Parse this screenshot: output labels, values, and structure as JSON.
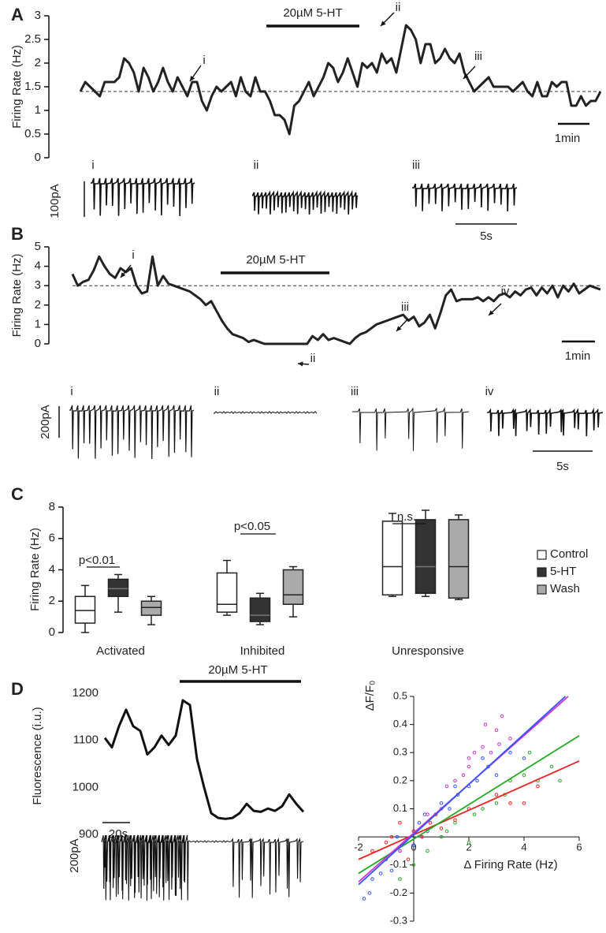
{
  "chart_data": [
    {
      "type": "line",
      "panel": "A",
      "ylabel": "Firing Rate (Hz)",
      "drug": "20µM 5-HT",
      "arrow_labels": [
        "i",
        "ii",
        "iii"
      ],
      "scale_time": "1min",
      "trace_labels": [
        "i",
        "ii",
        "iii"
      ],
      "trace_scale_current": "100pA",
      "trace_scale_time": "5s",
      "reference_line": 1.4,
      "color": "#222222",
      "ylim": [
        0,
        3
      ],
      "yticks": [
        0,
        0.5,
        1,
        1.5,
        2,
        2.5,
        3
      ],
      "values": [
        1.4,
        1.6,
        1.5,
        1.4,
        1.3,
        1.6,
        1.6,
        1.6,
        1.7,
        2.1,
        2.0,
        1.8,
        1.4,
        1.9,
        1.7,
        1.4,
        1.6,
        1.9,
        1.6,
        1.4,
        1.7,
        1.5,
        1.3,
        1.6,
        1.6,
        1.2,
        1.0,
        1.3,
        1.5,
        1.4,
        1.5,
        1.6,
        1.3,
        1.7,
        1.4,
        1.3,
        1.7,
        1.4,
        1.4,
        1.2,
        0.9,
        0.9,
        0.8,
        0.5,
        1.1,
        1.2,
        1.4,
        1.6,
        1.3,
        1.5,
        1.7,
        2.0,
        1.9,
        1.6,
        1.8,
        2.1,
        1.8,
        1.5,
        2.0,
        1.9,
        2.0,
        1.8,
        2.2,
        2.0,
        2.1,
        1.8,
        2.3,
        2.8,
        2.7,
        2.5,
        2.0,
        2.4,
        2.4,
        2.0,
        2.1,
        2.3,
        2.1,
        2.0,
        2.2,
        1.8,
        1.6,
        1.4,
        1.5,
        1.6,
        1.7,
        1.5,
        1.5,
        1.5,
        1.5,
        1.4,
        1.5,
        1.6,
        1.4,
        1.3,
        1.6,
        1.3,
        1.3,
        1.6,
        1.5,
        1.6,
        1.6,
        1.1,
        1.1,
        1.3,
        1.1,
        1.2,
        1.2,
        1.4
      ]
    },
    {
      "type": "line",
      "panel": "B",
      "ylabel": "Firing Rate (Hz)",
      "drug": "20µM 5-HT",
      "arrow_labels": [
        "i",
        "ii",
        "iii",
        "iv"
      ],
      "scale_time": "1min",
      "trace_labels": [
        "i",
        "ii",
        "iii",
        "iv"
      ],
      "trace_scale_current": "200pA",
      "trace_scale_time": "5s",
      "reference_line": 3,
      "color": "#222222",
      "ylim": [
        0,
        5
      ],
      "yticks": [
        0,
        1,
        2,
        3,
        4,
        5
      ],
      "values": [
        3.6,
        3.0,
        3.2,
        3.3,
        3.8,
        4.5,
        4.0,
        3.6,
        3.4,
        3.9,
        3.7,
        3.9,
        3.0,
        2.6,
        2.7,
        4.5,
        3.0,
        3.5,
        3.1,
        3.0,
        2.9,
        2.8,
        2.7,
        2.5,
        2.3,
        2.0,
        2.2,
        1.7,
        1.2,
        0.8,
        0.5,
        0.4,
        0.3,
        0.1,
        0.2,
        0.1,
        0,
        0,
        0,
        0,
        0,
        0,
        0,
        0,
        0,
        0.4,
        0.2,
        0.5,
        0.2,
        0.3,
        0.2,
        0.1,
        0,
        0.3,
        0.5,
        0.6,
        0.8,
        1.0,
        1.1,
        1.2,
        1.3,
        1.4,
        1.5,
        1.2,
        1.4,
        0.9,
        1.1,
        1.5,
        0.8,
        1.6,
        2.5,
        2.8,
        2.2,
        2.3,
        2.3,
        2.3,
        2.4,
        2.2,
        2.4,
        2.2,
        2.5,
        2.6,
        2.4,
        2.7,
        2.5,
        2.8,
        2.9,
        2.5,
        2.9,
        2.6,
        3.0,
        2.4,
        3.0,
        2.7,
        3.1,
        2.6,
        2.8,
        3.0,
        2.9,
        2.8
      ]
    },
    {
      "type": "box",
      "panel": "C",
      "ylabel": "Firing Rate (Hz)",
      "categories": [
        "Activated",
        "Inhibited",
        "Unresponsive"
      ],
      "annotations": [
        "p<0.01",
        "p<0.05",
        "n.s."
      ],
      "ylim": [
        0,
        8
      ],
      "yticks": [
        0,
        2,
        4,
        6,
        8
      ],
      "series": [
        {
          "name": "Control",
          "color": "#ffffff",
          "min": [
            0,
            1.1,
            2.3
          ],
          "q1": [
            0.6,
            1.3,
            2.4
          ],
          "median": [
            1.4,
            1.8,
            4.2
          ],
          "q3": [
            2.3,
            3.8,
            7.1
          ],
          "max": [
            3.0,
            4.6,
            7.6
          ]
        },
        {
          "name": "5-HT",
          "color": "#333333",
          "min": [
            1.3,
            0.5,
            2.3
          ],
          "q1": [
            2.3,
            0.7,
            2.5
          ],
          "median": [
            2.8,
            1.1,
            4.2
          ],
          "q3": [
            3.4,
            2.2,
            7.2
          ],
          "max": [
            3.7,
            2.5,
            7.8
          ]
        },
        {
          "name": "Wash",
          "color": "#aaaaaa",
          "min": [
            0.5,
            1.0,
            2.1
          ],
          "q1": [
            1.1,
            1.8,
            2.2
          ],
          "median": [
            1.6,
            2.4,
            4.2
          ],
          "q3": [
            2.0,
            4.0,
            7.2
          ],
          "max": [
            2.3,
            4.2,
            7.5
          ]
        }
      ]
    },
    {
      "type": "line",
      "panel": "D",
      "ylabel": "Fluorescence (i.u.)",
      "drug": "20µM 5-HT",
      "scale_time": "20s",
      "trace_scale_current": "200pA",
      "color": "#111111",
      "ylim": [
        900,
        1200
      ],
      "yticks": [
        900,
        1000,
        1100,
        1200
      ],
      "values": [
        1105,
        1085,
        1130,
        1165,
        1130,
        1120,
        1070,
        1085,
        1110,
        1090,
        1110,
        1185,
        1175,
        1060,
        1000,
        945,
        935,
        933,
        935,
        945,
        965,
        950,
        948,
        955,
        950,
        960,
        985,
        965,
        948
      ]
    },
    {
      "type": "scatter",
      "xlabel": "Δ Firing Rate (Hz)",
      "ylabel": "ΔF/F₀",
      "xlim": [
        -2,
        6
      ],
      "xticks": [
        -2,
        0,
        2,
        4,
        6
      ],
      "ylim": [
        -0.3,
        0.5
      ],
      "yticks": [
        -0.3,
        -0.2,
        -0.1,
        0.1,
        0.2,
        0.3,
        0.4,
        0.5
      ],
      "series": [
        {
          "color": "#3355ff",
          "x": [
            -1.8,
            -1.5,
            -1.2,
            -1,
            -0.8,
            -0.5,
            -0.3,
            0,
            0.2,
            0.5,
            0.8,
            1,
            1.3,
            1.6,
            2,
            2.3,
            2.7,
            3,
            3.5,
            4,
            -1.6,
            -0.6,
            0.4,
            1.5,
            2.5
          ],
          "y": [
            -0.22,
            -0.15,
            -0.13,
            -0.08,
            -0.12,
            -0.05,
            -0.02,
            -0.03,
            0.05,
            0.02,
            0.08,
            0.12,
            0.1,
            0.15,
            0.18,
            0.2,
            0.25,
            0.22,
            0.3,
            0.28,
            -0.2,
            0.0,
            0.08,
            0.18,
            0.28
          ]
        },
        {
          "color": "#cc33cc",
          "x": [
            -0.5,
            0,
            0.5,
            1,
            1.5,
            2,
            2.2,
            2.5,
            2.8,
            3,
            3.2,
            3.5,
            1.8,
            1.2,
            0.3,
            2.6,
            3.1,
            2.0
          ],
          "y": [
            -0.05,
            0.02,
            0.08,
            0.1,
            0.2,
            0.25,
            0.3,
            0.32,
            0.3,
            0.38,
            0.43,
            0.35,
            0.22,
            0.18,
            0.0,
            0.4,
            0.33,
            0.28
          ]
        },
        {
          "color": "#22aa22",
          "x": [
            -0.5,
            0,
            0.5,
            1,
            1.5,
            2,
            2.5,
            3,
            3.5,
            4,
            4.5,
            5,
            5.3,
            4.2,
            3.3,
            2.2,
            1.2
          ],
          "y": [
            -0.15,
            -0.1,
            -0.05,
            0.0,
            0.05,
            -0.02,
            0.1,
            0.12,
            0.2,
            0.22,
            0.2,
            0.25,
            0.2,
            0.3,
            0.15,
            0.08,
            0.02
          ]
        },
        {
          "color": "#ee2222",
          "x": [
            -1.5,
            -1,
            -0.5,
            -0.2,
            0,
            0.3,
            0.6,
            1,
            1.5,
            2,
            3,
            3.5,
            4,
            4.5,
            -0.8,
            0.8
          ],
          "y": [
            -0.05,
            -0.02,
            0.05,
            -0.08,
            0.02,
            0.0,
            0.05,
            0.03,
            0.06,
            0.1,
            0.15,
            0.12,
            0.12,
            0.18,
            0.0,
            0.08
          ]
        }
      ],
      "fits": [
        {
          "color": "#ee2222",
          "x": [
            -2,
            6
          ],
          "y": [
            -0.08,
            0.27
          ]
        },
        {
          "color": "#22aa22",
          "x": [
            -2,
            6
          ],
          "y": [
            -0.13,
            0.36
          ]
        },
        {
          "color": "#cc33cc",
          "x": [
            -2,
            5.6
          ],
          "y": [
            -0.16,
            0.5
          ]
        },
        {
          "color": "#3355ff",
          "x": [
            -2,
            5.5
          ],
          "y": [
            -0.17,
            0.5
          ]
        }
      ]
    }
  ]
}
